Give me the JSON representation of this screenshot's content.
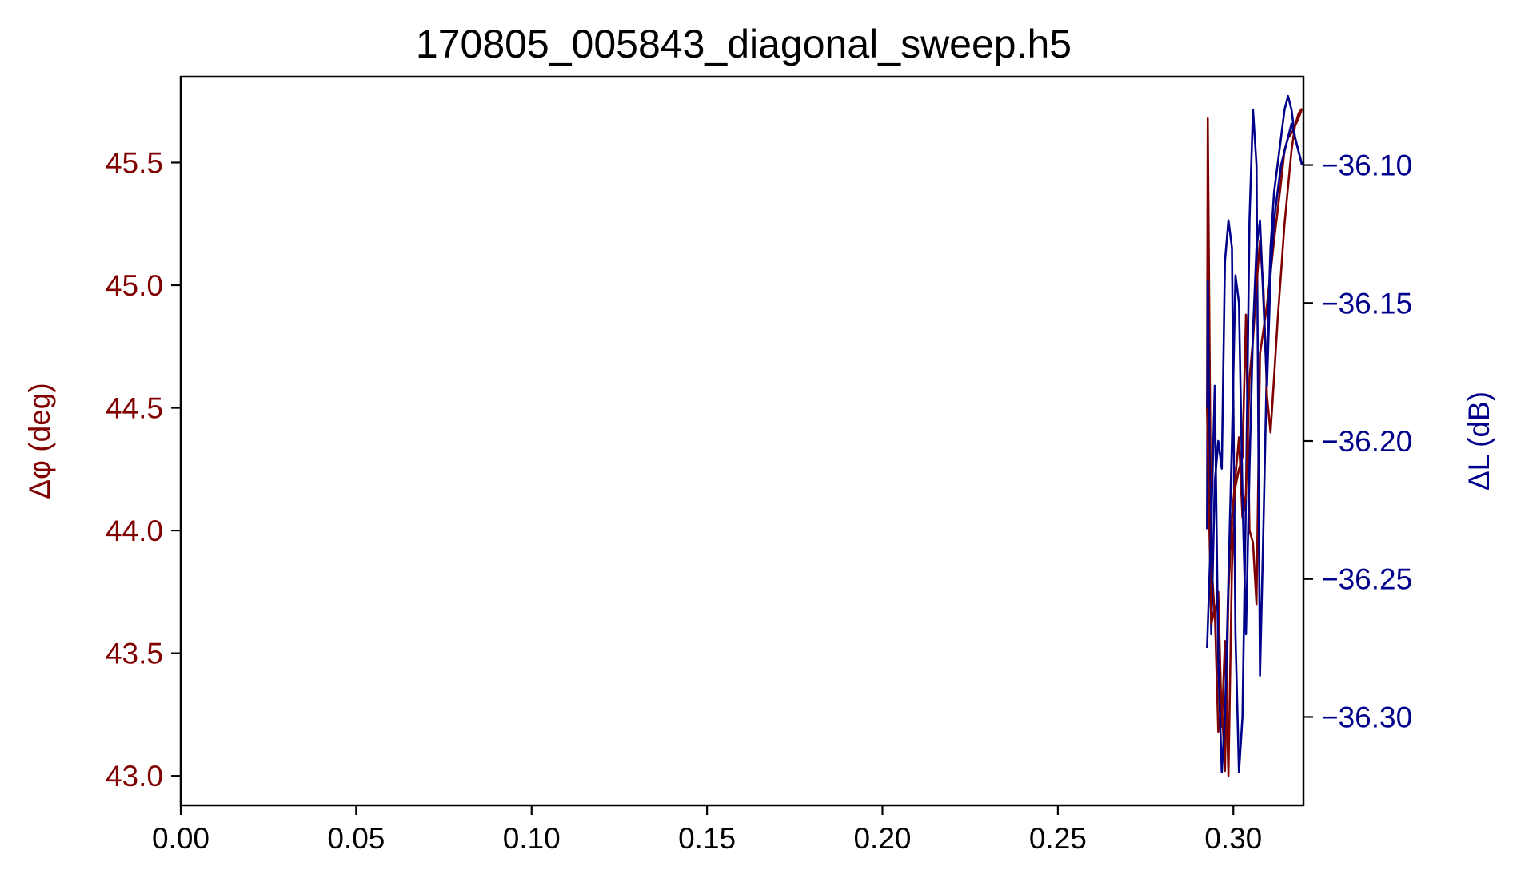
{
  "chart_data": {
    "type": "line",
    "title": "170805_005843_diagonal_sweep.h5",
    "xlabel": "",
    "ylabel_left": "Δφ (deg)",
    "ylabel_right": "ΔL (dB)",
    "xlim": [
      0.0,
      0.32
    ],
    "ylim_left": [
      42.88,
      45.85
    ],
    "ylim_right": [
      -36.332,
      -36.068
    ],
    "x_ticks": [
      "0.00",
      "0.05",
      "0.10",
      "0.15",
      "0.20",
      "0.25",
      "0.30"
    ],
    "left_ticks": [
      "43.0",
      "43.5",
      "44.0",
      "44.5",
      "45.0",
      "45.5"
    ],
    "right_ticks": [
      "−36.30",
      "−36.25",
      "−36.20",
      "−36.15",
      "−36.10"
    ],
    "grid": false,
    "colors": {
      "left": "#800000",
      "right": "#00008b",
      "frame": "#000000"
    },
    "series": [
      {
        "axis": "left",
        "x": [
          0.2925,
          0.2927,
          0.2937,
          0.2947,
          0.2957,
          0.2967,
          0.2976,
          0.2986,
          0.2996,
          0.3006,
          0.3016,
          0.3026,
          0.3036,
          0.3046,
          0.3056,
          0.3066,
          0.3076,
          0.3086,
          0.3096,
          0.3106,
          0.3116,
          0.3126,
          0.3136,
          0.3146,
          0.3156,
          0.3166,
          0.3176,
          0.3186,
          0.3196
        ],
        "y": [
          44.48,
          45.68,
          43.88,
          43.65,
          43.75,
          43.2,
          43.55,
          43.0,
          43.85,
          44.18,
          44.25,
          44.3,
          44.88,
          44.0,
          43.95,
          43.7,
          44.72,
          44.82,
          44.92,
          45.05,
          45.18,
          45.3,
          45.42,
          45.55,
          45.6,
          45.62,
          45.65,
          45.68,
          45.72
        ],
        "name": ""
      },
      {
        "axis": "right",
        "x": [
          0.2925,
          0.2927,
          0.2937,
          0.2947,
          0.2957,
          0.2967,
          0.2976,
          0.2986,
          0.2996,
          0.3006,
          0.3016,
          0.3026,
          0.3036,
          0.3046,
          0.3056,
          0.3066,
          0.3076,
          0.3086,
          0.3096,
          0.3106,
          0.3116,
          0.3126,
          0.3136,
          0.3146,
          0.3156,
          0.3166,
          0.3176,
          0.3186,
          0.3196
        ],
        "y": [
          -36.232,
          -36.142,
          -36.27,
          -36.215,
          -36.2,
          -36.21,
          -36.135,
          -36.12,
          -36.13,
          -36.27,
          -36.32,
          -36.3,
          -36.22,
          -36.12,
          -36.08,
          -36.1,
          -36.285,
          -36.23,
          -36.17,
          -36.13,
          -36.11,
          -36.1,
          -36.09,
          -36.08,
          -36.075,
          -36.08,
          -36.09,
          -36.095,
          -36.1
        ],
        "name": ""
      },
      {
        "axis": "left",
        "x": [
          0.2925,
          0.2937,
          0.2947,
          0.2957,
          0.2967,
          0.2976,
          0.2986,
          0.2996,
          0.3006,
          0.3016,
          0.3026,
          0.3036,
          0.3046,
          0.3056,
          0.3066,
          0.3076,
          0.3086,
          0.3096,
          0.3106,
          0.3116,
          0.3126,
          0.3136,
          0.3146,
          0.3156,
          0.3166,
          0.3176,
          0.3186,
          0.3196
        ],
        "y": [
          44.5,
          43.62,
          43.68,
          43.18,
          43.3,
          43.02,
          43.75,
          44.05,
          44.22,
          44.38,
          44.05,
          44.15,
          44.62,
          44.78,
          45.0,
          45.18,
          44.98,
          44.55,
          44.4,
          44.62,
          44.85,
          45.05,
          45.25,
          45.4,
          45.55,
          45.65,
          45.7,
          45.72
        ],
        "name": ""
      },
      {
        "axis": "right",
        "x": [
          0.2925,
          0.2937,
          0.2947,
          0.2957,
          0.2967,
          0.2976,
          0.2986,
          0.2996,
          0.3006,
          0.3016,
          0.3026,
          0.3036,
          0.3046,
          0.3056,
          0.3066,
          0.3076,
          0.3086,
          0.3096,
          0.3106,
          0.3116,
          0.3126,
          0.3136,
          0.3146,
          0.3156,
          0.3166,
          0.3176,
          0.3186,
          0.3196
        ],
        "y": [
          -36.275,
          -36.23,
          -36.18,
          -36.28,
          -36.32,
          -36.3,
          -36.25,
          -36.2,
          -36.14,
          -36.15,
          -36.22,
          -36.27,
          -36.21,
          -36.16,
          -36.13,
          -36.12,
          -36.15,
          -36.18,
          -36.14,
          -36.12,
          -36.11,
          -36.1,
          -36.095,
          -36.09,
          -36.085,
          -36.09,
          -36.095,
          -36.1
        ],
        "name": ""
      }
    ]
  }
}
